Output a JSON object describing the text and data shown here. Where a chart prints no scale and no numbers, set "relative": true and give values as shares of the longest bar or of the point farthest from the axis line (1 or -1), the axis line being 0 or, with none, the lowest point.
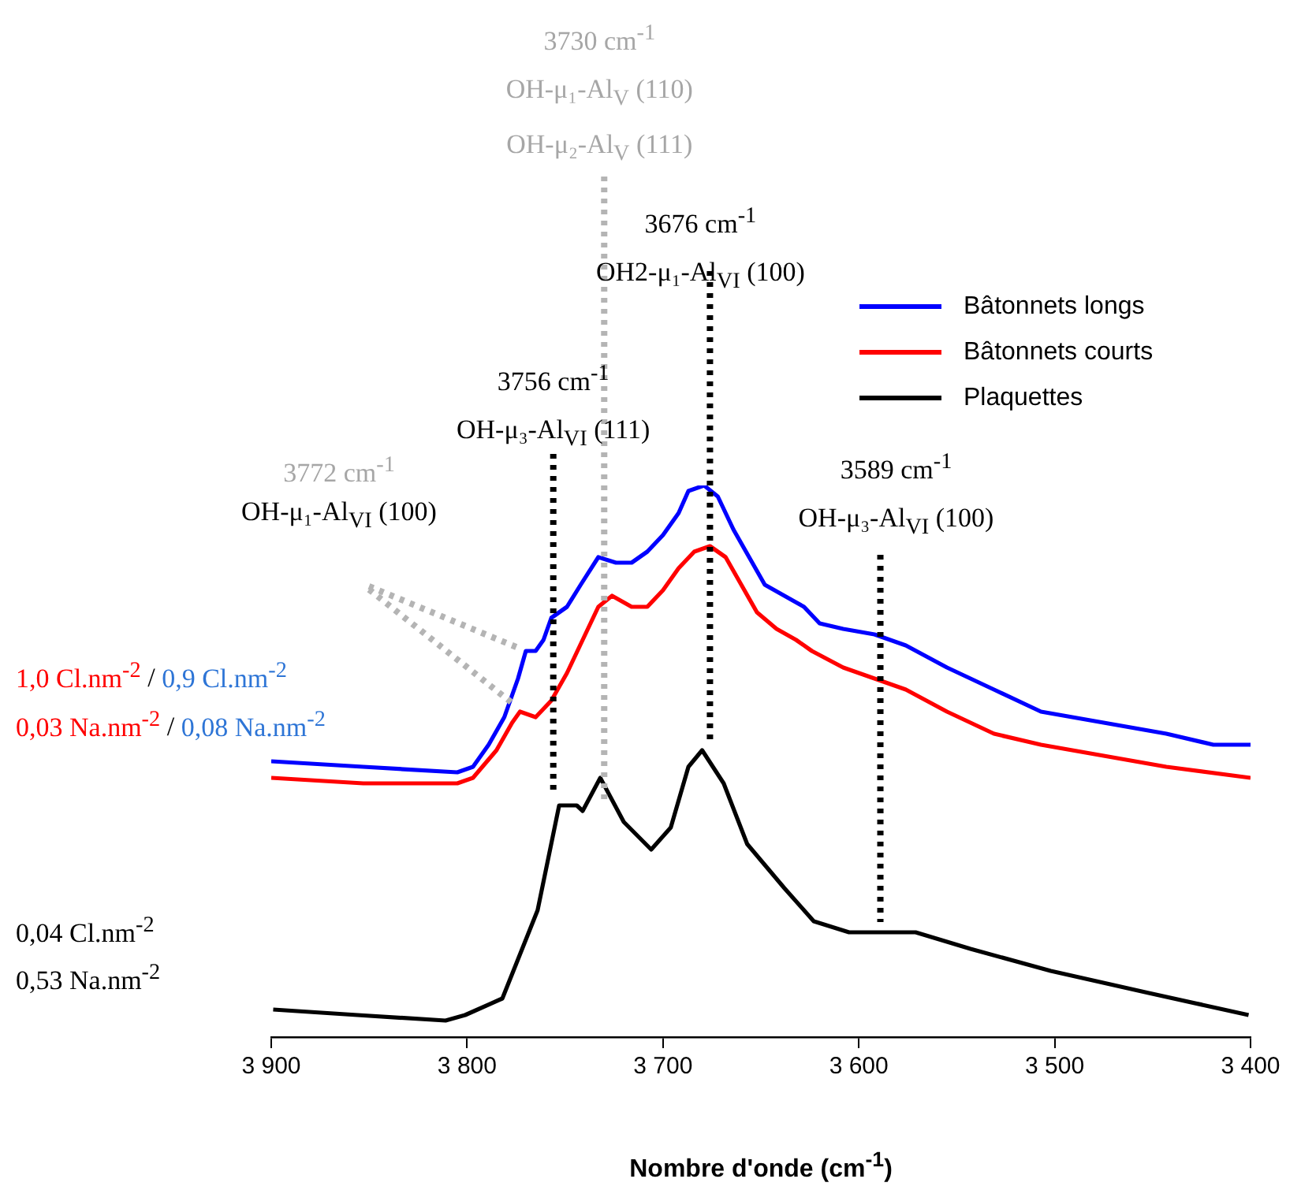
{
  "chart_data": {
    "type": "line",
    "relative": true,
    "xlabel": "Nombre d'onde (cm$^{-1}$)",
    "legend": "top right",
    "grid": false,
    "xlim": [
      3900,
      3400
    ],
    "xticks": [
      {
        "value": 3900,
        "label": "3 900"
      },
      {
        "value": 3800,
        "label": "3 800"
      },
      {
        "value": 3700,
        "label": "3 700"
      },
      {
        "value": 3600,
        "label": "3 600"
      },
      {
        "value": 3500,
        "label": "3 500"
      },
      {
        "value": 3400,
        "label": "3 400"
      }
    ],
    "series": [
      {
        "name": "Bâtonnets longs",
        "color": "#0000ff",
        "x": [
          3900,
          3853,
          3805,
          3797,
          3789,
          3781,
          3774,
          3770,
          3765,
          3761,
          3757,
          3753,
          3749,
          3742,
          3733,
          3724,
          3716,
          3708,
          3700,
          3692,
          3687,
          3679,
          3672,
          3664,
          3656,
          3648,
          3638,
          3628,
          3620,
          3608,
          3592,
          3576,
          3555,
          3531,
          3507,
          3475,
          3443,
          3419,
          3400
        ],
        "values": [
          0.5,
          0.49,
          0.48,
          0.49,
          0.53,
          0.58,
          0.65,
          0.7,
          0.7,
          0.72,
          0.76,
          0.77,
          0.78,
          0.82,
          0.87,
          0.86,
          0.86,
          0.88,
          0.91,
          0.95,
          0.99,
          1.0,
          0.98,
          0.92,
          0.87,
          0.82,
          0.8,
          0.78,
          0.75,
          0.74,
          0.73,
          0.71,
          0.67,
          0.63,
          0.59,
          0.57,
          0.55,
          0.53,
          0.53
        ]
      },
      {
        "name": "Bâtonnets courts",
        "color": "#ff0000",
        "x": [
          3900,
          3853,
          3805,
          3797,
          3785,
          3777,
          3773,
          3765,
          3757,
          3749,
          3741,
          3733,
          3726,
          3716,
          3708,
          3700,
          3692,
          3684,
          3676,
          3668,
          3660,
          3652,
          3642,
          3632,
          3624,
          3608,
          3592,
          3576,
          3555,
          3531,
          3507,
          3475,
          3443,
          3400
        ],
        "values": [
          0.47,
          0.46,
          0.46,
          0.47,
          0.52,
          0.57,
          0.59,
          0.58,
          0.61,
          0.66,
          0.72,
          0.78,
          0.8,
          0.78,
          0.78,
          0.81,
          0.85,
          0.88,
          0.89,
          0.87,
          0.82,
          0.77,
          0.74,
          0.72,
          0.7,
          0.67,
          0.65,
          0.63,
          0.59,
          0.55,
          0.53,
          0.51,
          0.49,
          0.47
        ]
      },
      {
        "name": "Plaquettes",
        "color": "#000000",
        "x": [
          3899,
          3856,
          3811,
          3801,
          3782,
          3764,
          3753,
          3744,
          3741,
          3732,
          3720,
          3706,
          3696,
          3687,
          3680,
          3669,
          3657,
          3638,
          3623,
          3605,
          3571,
          3543,
          3502,
          3452,
          3401
        ],
        "values": [
          0.05,
          0.04,
          0.03,
          0.04,
          0.07,
          0.23,
          0.42,
          0.42,
          0.41,
          0.47,
          0.39,
          0.34,
          0.38,
          0.49,
          0.52,
          0.46,
          0.35,
          0.27,
          0.21,
          0.19,
          0.19,
          0.16,
          0.12,
          0.08,
          0.04
        ]
      }
    ],
    "ref_lines": [
      {
        "axis": "x",
        "value": 3756,
        "label": "3756 cm$^{-1}$\nOH-μ₃-Al$_{VI}$ (111)",
        "color": "#000000",
        "line_style": "dotted"
      },
      {
        "axis": "x",
        "value": 3730,
        "label": "3730 cm$^{-1}$\nOH-μ₁-Al$_{V}$ (110)\nOH-μ₂-Al$_{V}$ (111)",
        "color": "#b4b4b4",
        "line_style": "dotted"
      },
      {
        "axis": "x",
        "value": 3676,
        "label": "3676 cm$^{-1}$\nOH2-μ₁-Al$_{VI}$ (100)",
        "color": "#000000",
        "line_style": "dotted"
      },
      {
        "axis": "x",
        "value": 3589,
        "label": "3589 cm$^{-1}$\nOH-μ₃-Al$_{VI}$ (100)",
        "color": "#000000",
        "line_style": "dotted"
      }
    ],
    "annotations": [
      "3772 cm$^{-1}$",
      "OH-μ₁-Al$_{VI}$ (100)",
      "1,0 Cl.nm$^{-2}$ / 0,9 Cl.nm$^{-2}$",
      "0,03 Na.nm$^{-2}$ / 0,08 Na.nm$^{-2}$",
      "0,04 Cl.nm$^{-2}$",
      "0,53 Na.nm$^{-2}$"
    ]
  }
}
